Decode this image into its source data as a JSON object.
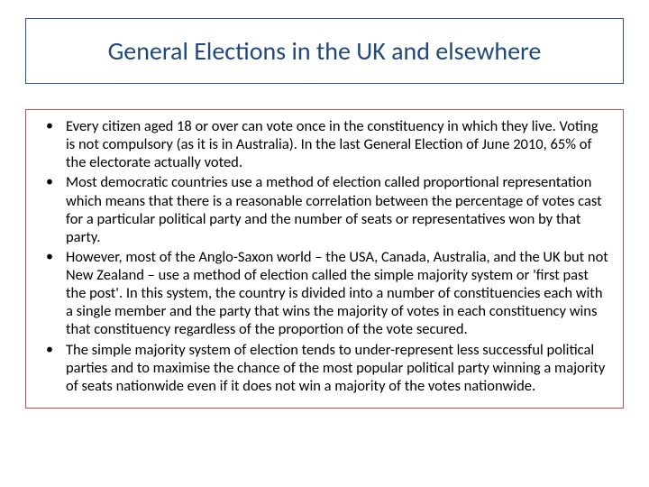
{
  "slide": {
    "title": "General Elections in the UK and elsewhere",
    "title_color": "#1f497d",
    "title_border_color": "#2a5a8a",
    "title_fontsize": 28,
    "content_border_color": "#c0504d",
    "body_fontsize": 16.5,
    "background_color": "#ffffff",
    "bullets": [
      "Every citizen aged 18 or over can vote once in the constituency in which they live. Voting is not compulsory (as it is in Australia). In the last General Election of June 2010, 65% of the electorate actually voted.",
      "Most democratic countries use a method of election called proportional representation which means that there is a reasonable correlation between the percentage of votes cast for a particular political party and the number of seats or representatives won by that party.",
      "However, most of the Anglo-Saxon world – the USA, Canada, Australia, and the UK but not New Zealand – use a method of election called the simple majority system or 'first past the post'. In this system, the country is divided into a number of constituencies each with a single member and the party that wins the majority of votes in each constituency wins that constituency regardless of the proportion of the vote secured.",
      "The simple majority system of election tends to under-represent less successful political parties and to maximise the chance of the most popular political party winning a majority of seats nationwide even if it does not win a majority of the votes nationwide."
    ]
  }
}
